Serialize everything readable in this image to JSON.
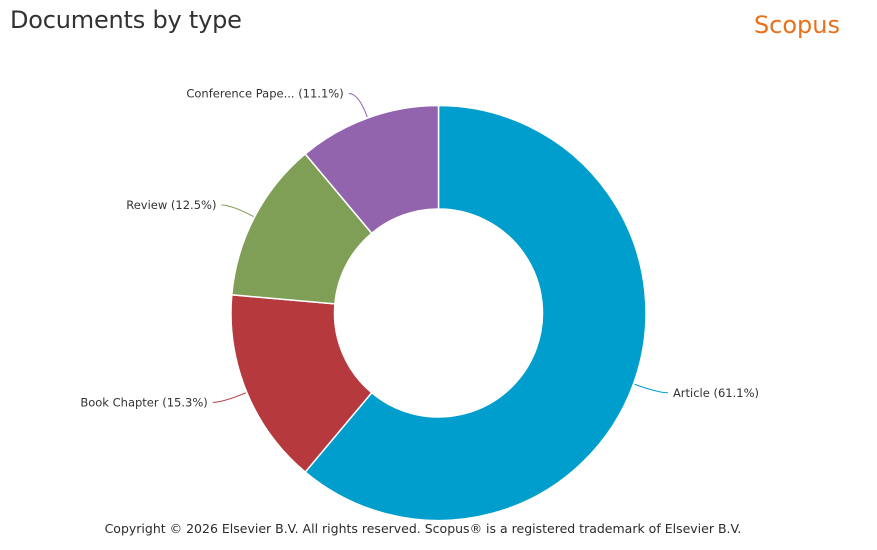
{
  "header": {
    "title": "Documents by type",
    "brand": "Scopus",
    "brand_color": "#e9711c"
  },
  "footer": {
    "copyright": "Copyright © 2026 Elsevier B.V. All rights reserved. Scopus® is a registered trademark of Elsevier B.V."
  },
  "chart_data": {
    "type": "pie",
    "title": "Documents by type",
    "donut": true,
    "start_angle_deg": 0,
    "direction": "clockwise",
    "slices": [
      {
        "label": "Article (61.1%)",
        "category": "Article",
        "value": 61.1,
        "color": "#009ecc"
      },
      {
        "label": "Book Chapter (15.3%)",
        "category": "Book Chapter",
        "value": 15.3,
        "color": "#b6393d"
      },
      {
        "label": "Review (12.5%)",
        "category": "Review",
        "value": 12.5,
        "color": "#7e9f55"
      },
      {
        "label": "Conference Pape... (11.1%)",
        "category": "Conference Paper",
        "value": 11.1,
        "color": "#9264ae"
      }
    ]
  }
}
